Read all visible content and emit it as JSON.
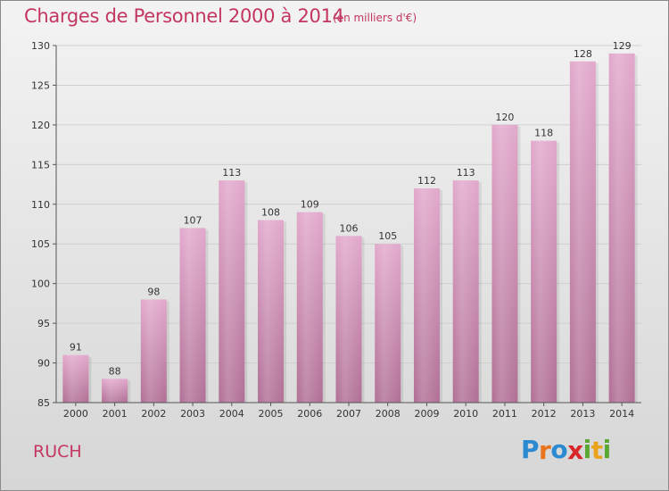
{
  "header": {
    "title": "Charges de Personnel 2000 à 2014",
    "unit": "(en milliers d'€)"
  },
  "footer": {
    "commune": "RUCH",
    "logo_letters": [
      "P",
      "r",
      "o",
      "x",
      "i",
      "t",
      "i"
    ],
    "logo_colors": [
      "#2c8ad1",
      "#e8741c",
      "#2c8ad1",
      "#d9262a",
      "#5aa832",
      "#e8a21c",
      "#5aa832"
    ]
  },
  "colors": {
    "accent": "#c2365f",
    "bar_top": "#e2a8cc",
    "bar_bottom": "#b06f95",
    "axis": "#555555"
  },
  "chart_data": {
    "type": "bar",
    "categories": [
      "2000",
      "2001",
      "2002",
      "2003",
      "2004",
      "2005",
      "2006",
      "2007",
      "2008",
      "2009",
      "2010",
      "2011",
      "2012",
      "2013",
      "2014"
    ],
    "values": [
      91,
      88,
      98,
      107,
      113,
      108,
      109,
      106,
      105,
      112,
      113,
      120,
      118,
      128,
      129
    ],
    "data_labels": [
      "91",
      "88",
      "98",
      "107",
      "113",
      "108",
      "109",
      "106",
      "105",
      "112",
      "113",
      "120",
      "118",
      "128",
      "129"
    ],
    "ylim": [
      85,
      130
    ],
    "yticks": [
      85,
      90,
      95,
      100,
      105,
      110,
      115,
      120,
      125,
      130
    ],
    "ytick_labels": [
      "85",
      "90",
      "95",
      "100",
      "105",
      "110",
      "115",
      "120",
      "125",
      "130"
    ],
    "grid": true
  }
}
